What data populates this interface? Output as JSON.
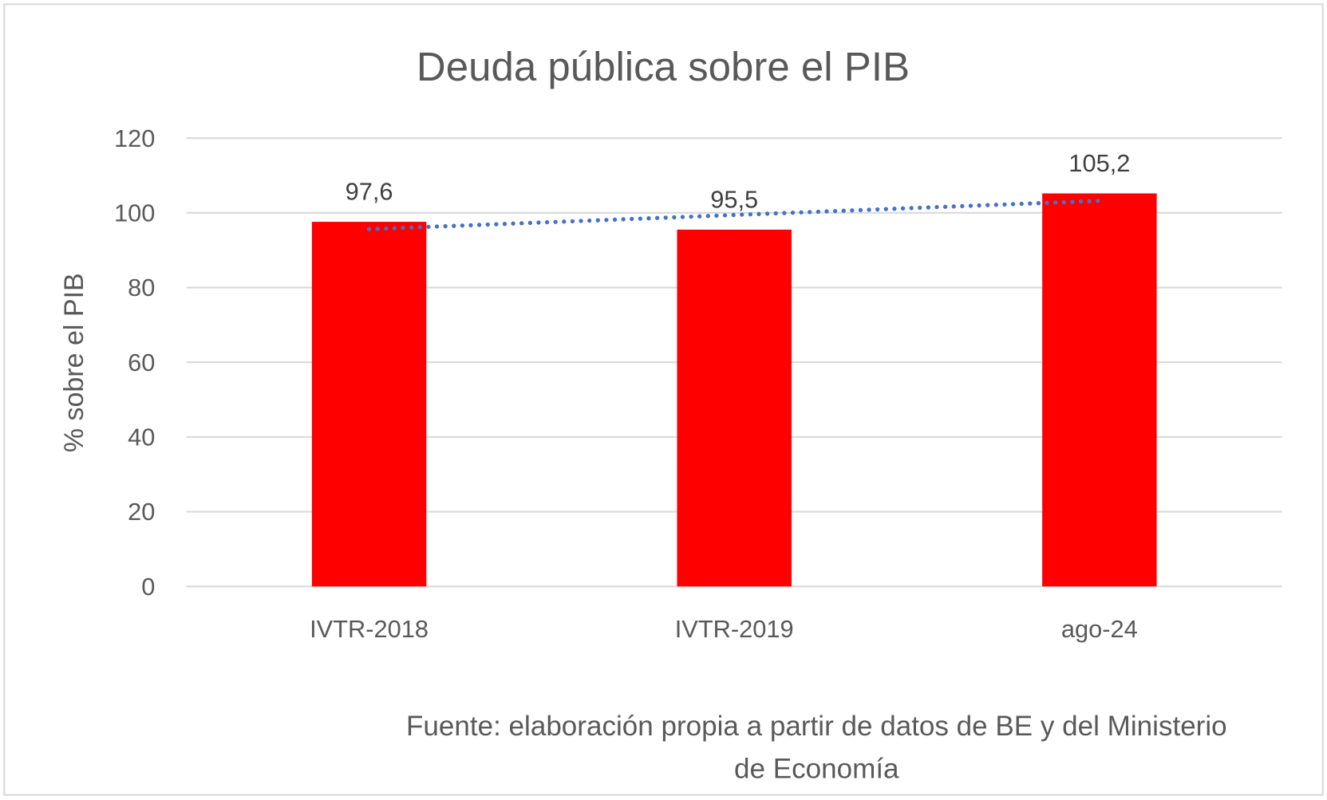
{
  "chart_data": {
    "type": "bar",
    "title": "Deuda pública sobre el PIB",
    "xlabel": "",
    "ylabel": "% sobre el PIB",
    "categories": [
      "IVTR-2018",
      "IVTR-2019",
      "ago-24"
    ],
    "values": [
      97.6,
      95.5,
      105.2
    ],
    "data_labels": [
      "97,6",
      "95,5",
      "105,2"
    ],
    "ylim": [
      0,
      120
    ],
    "yticks": [
      0,
      20,
      40,
      60,
      80,
      100,
      120
    ],
    "grid": true,
    "trendline": {
      "type": "linear",
      "style": "dotted"
    },
    "legend": "none",
    "colors": {
      "bar": "#ff0000",
      "trendline": "#4472c4",
      "grid": "#d9d9d9",
      "text": "#595959"
    },
    "source_lines": [
      "Fuente: elaboración propia a partir de datos de BE y del Ministerio",
      "de Economía"
    ]
  }
}
